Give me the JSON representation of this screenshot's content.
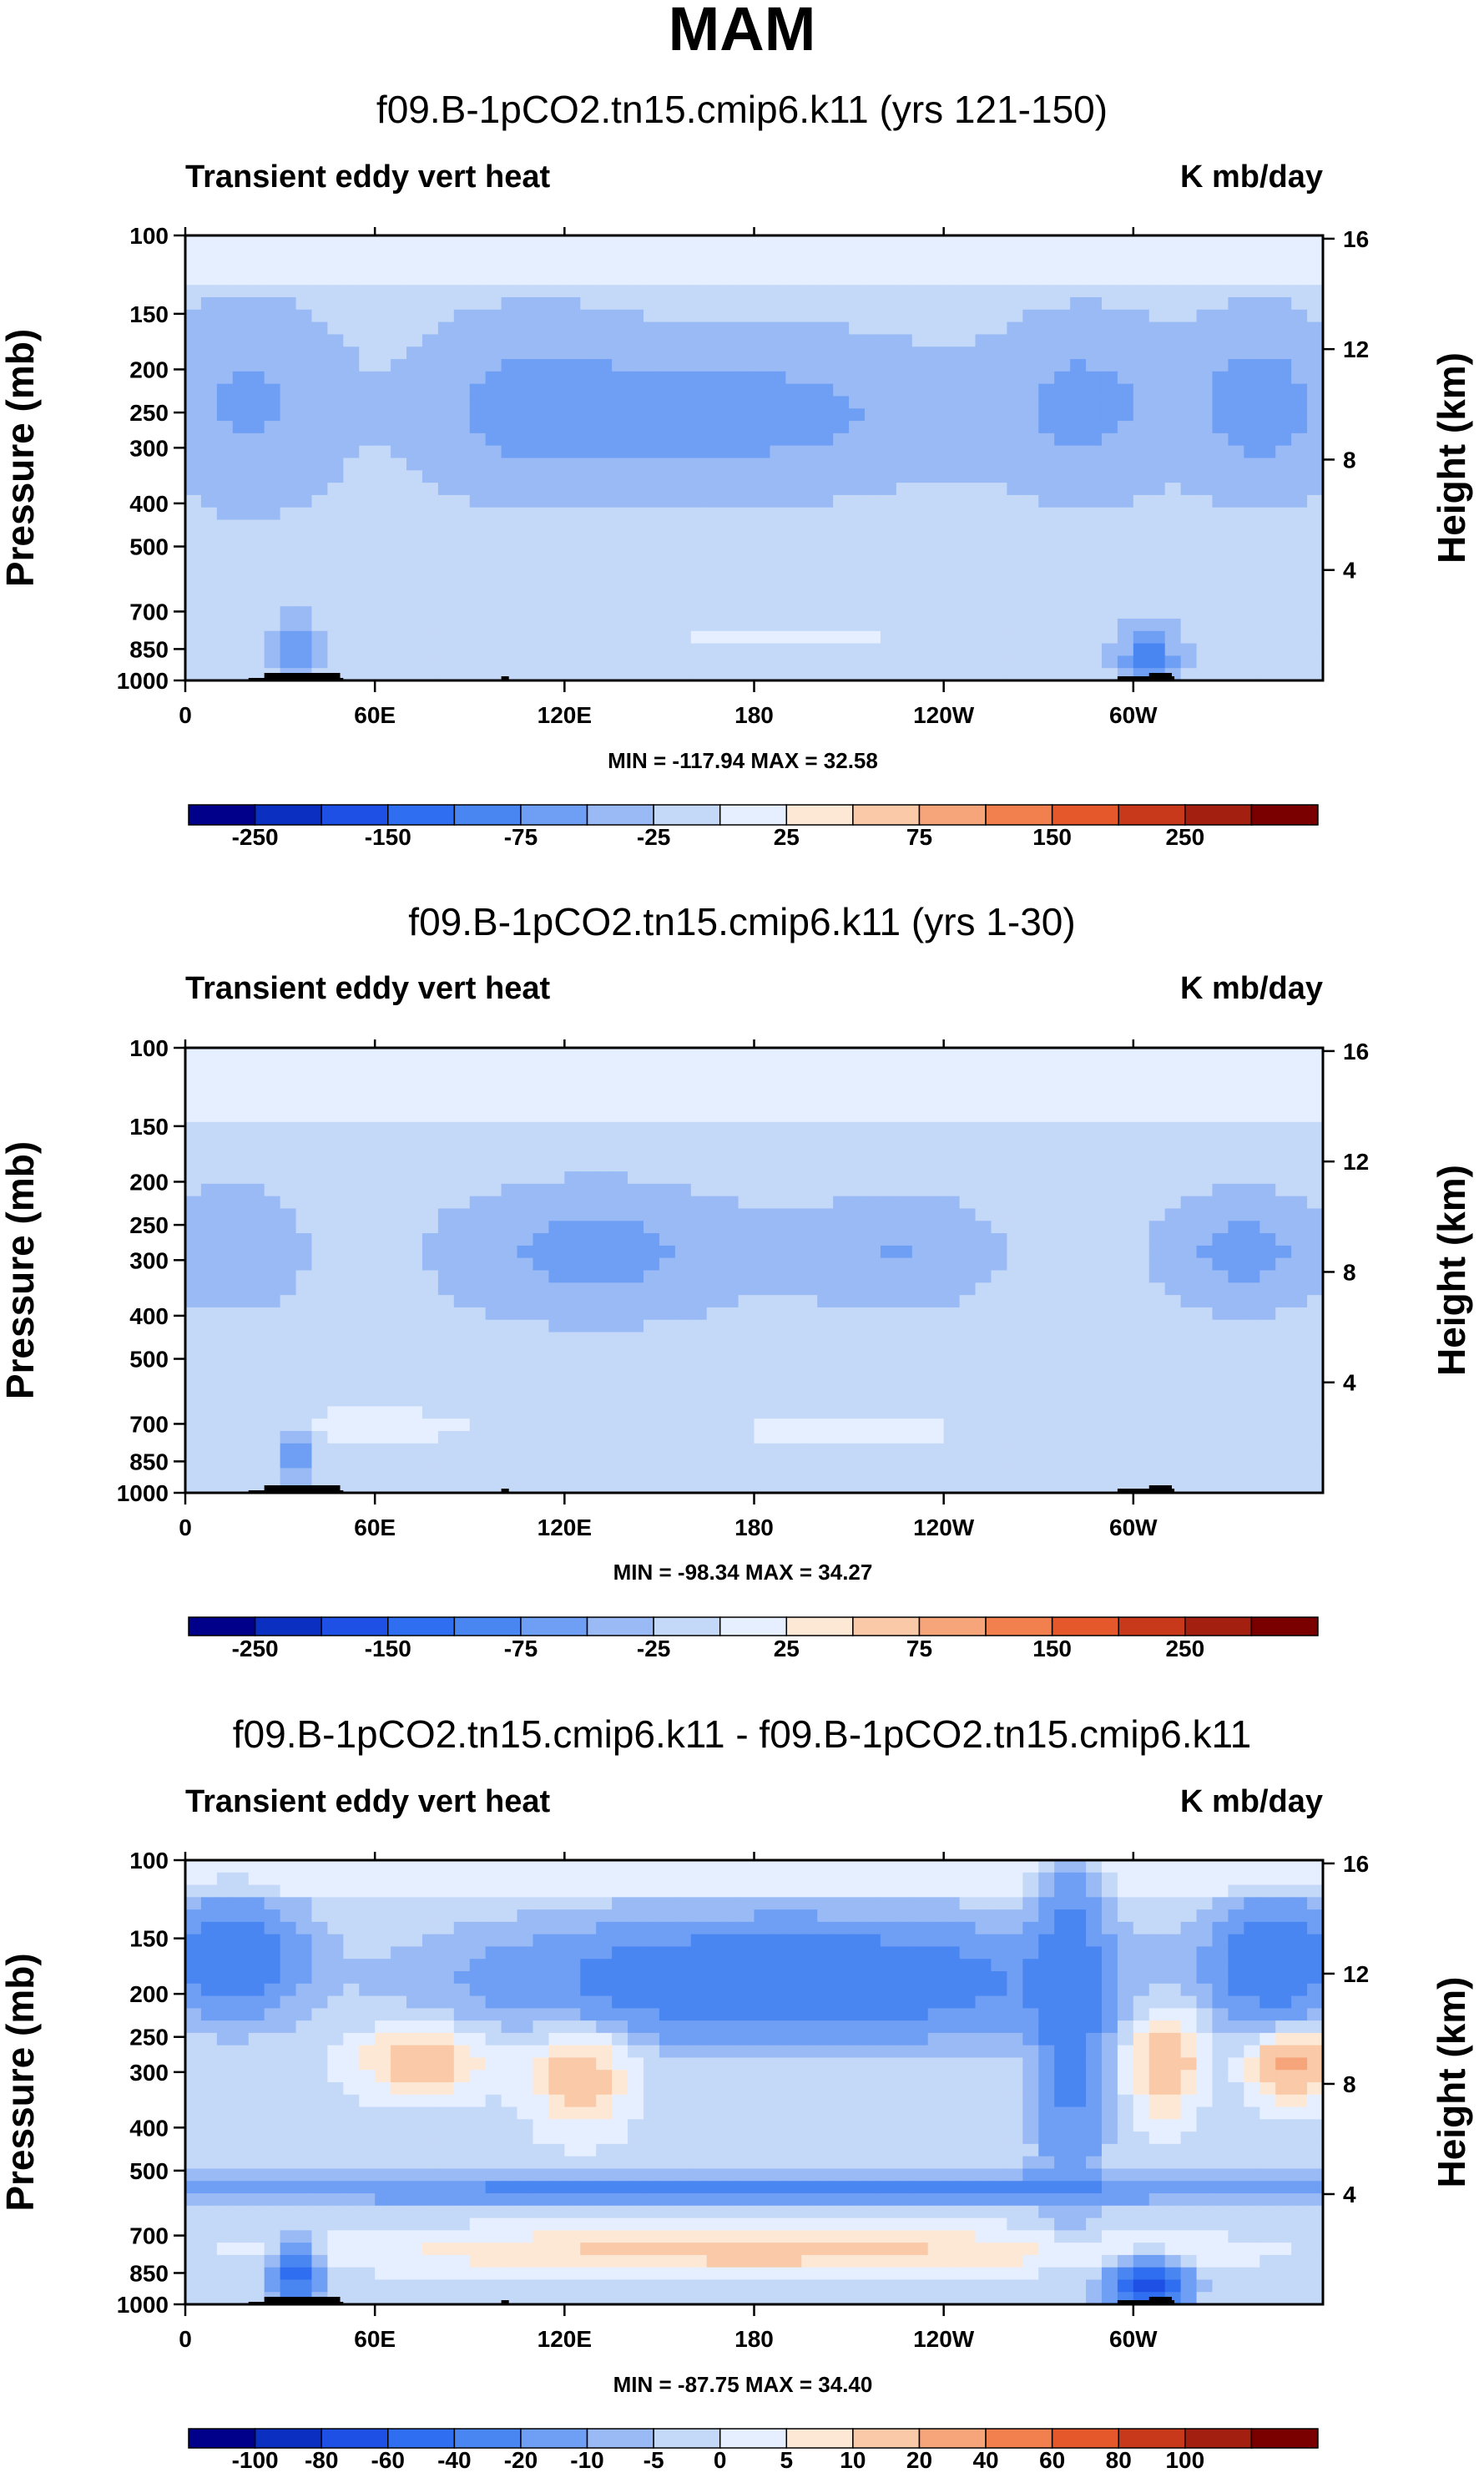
{
  "title": "MAM",
  "chart_data": [
    {
      "type": "heatmap",
      "subtitle": "f09.B-1pCO2.tn15.cmip6.k11 (yrs 121-150)",
      "left_label": "Transient eddy vert heat",
      "right_label": "K mb/day",
      "ylabel": "Pressure (mb)",
      "ylabel_right": "Height (km)",
      "x_ticks": [
        "0",
        "60E",
        "120E",
        "180",
        "120W",
        "60W"
      ],
      "x_tick_values": [
        0,
        60,
        120,
        180,
        240,
        300
      ],
      "xlim": [
        0,
        360
      ],
      "y_ticks": [
        "100",
        "150",
        "200",
        "250",
        "300",
        "400",
        "500",
        "700",
        "850",
        "1000"
      ],
      "y_tick_values": [
        100,
        150,
        200,
        250,
        300,
        400,
        500,
        700,
        850,
        1000
      ],
      "ylim": [
        1000,
        100
      ],
      "y2_ticks": [
        "16",
        "12",
        "8",
        "4"
      ],
      "y2_tick_values": [
        16,
        12,
        8,
        4
      ],
      "stats": "MIN = -117.94   MAX =  32.58",
      "min": -117.94,
      "max": 32.58,
      "colorbar_labels": [
        "-250",
        "-150",
        "-75",
        "-25",
        "25",
        "75",
        "150",
        "250"
      ],
      "colorbar_levels": [
        -300,
        -250,
        -200,
        -150,
        -100,
        -75,
        -50,
        -25,
        0,
        25,
        50,
        75,
        100,
        150,
        200,
        250,
        300
      ]
    },
    {
      "type": "heatmap",
      "subtitle": "f09.B-1pCO2.tn15.cmip6.k11 (yrs 1-30)",
      "left_label": "Transient eddy vert heat",
      "right_label": "K mb/day",
      "ylabel": "Pressure (mb)",
      "ylabel_right": "Height (km)",
      "x_ticks": [
        "0",
        "60E",
        "120E",
        "180",
        "120W",
        "60W"
      ],
      "x_tick_values": [
        0,
        60,
        120,
        180,
        240,
        300
      ],
      "xlim": [
        0,
        360
      ],
      "y_ticks": [
        "100",
        "150",
        "200",
        "250",
        "300",
        "400",
        "500",
        "700",
        "850",
        "1000"
      ],
      "y_tick_values": [
        100,
        150,
        200,
        250,
        300,
        400,
        500,
        700,
        850,
        1000
      ],
      "ylim": [
        1000,
        100
      ],
      "y2_ticks": [
        "16",
        "12",
        "8",
        "4"
      ],
      "y2_tick_values": [
        16,
        12,
        8,
        4
      ],
      "stats": "MIN = -98.34   MAX =  34.27",
      "min": -98.34,
      "max": 34.27,
      "colorbar_labels": [
        "-250",
        "-150",
        "-75",
        "-25",
        "25",
        "75",
        "150",
        "250"
      ],
      "colorbar_levels": [
        -300,
        -250,
        -200,
        -150,
        -100,
        -75,
        -50,
        -25,
        0,
        25,
        50,
        75,
        100,
        150,
        200,
        250,
        300
      ]
    },
    {
      "type": "heatmap",
      "subtitle": "f09.B-1pCO2.tn15.cmip6.k11 - f09.B-1pCO2.tn15.cmip6.k11",
      "left_label": "Transient eddy vert heat",
      "right_label": "K mb/day",
      "ylabel": "Pressure (mb)",
      "ylabel_right": "Height (km)",
      "x_ticks": [
        "0",
        "60E",
        "120E",
        "180",
        "120W",
        "60W"
      ],
      "x_tick_values": [
        0,
        60,
        120,
        180,
        240,
        300
      ],
      "xlim": [
        0,
        360
      ],
      "y_ticks": [
        "100",
        "150",
        "200",
        "250",
        "300",
        "400",
        "500",
        "700",
        "850",
        "1000"
      ],
      "y_tick_values": [
        100,
        150,
        200,
        250,
        300,
        400,
        500,
        700,
        850,
        1000
      ],
      "ylim": [
        1000,
        100
      ],
      "y2_ticks": [
        "16",
        "12",
        "8",
        "4"
      ],
      "y2_tick_values": [
        16,
        12,
        8,
        4
      ],
      "stats": "MIN = -87.75   MAX =  34.40",
      "min": -87.75,
      "max": 34.4,
      "colorbar_labels": [
        "-100",
        "-80",
        "-60",
        "-40",
        "-20",
        "-10",
        "-5",
        "0",
        "5",
        "10",
        "20",
        "40",
        "60",
        "80",
        "100"
      ],
      "colorbar_levels": [
        -120,
        -100,
        -80,
        -60,
        -40,
        -20,
        -10,
        -5,
        0,
        5,
        10,
        20,
        40,
        60,
        80,
        100,
        120
      ]
    }
  ],
  "colorbar_colors": [
    "#00008b",
    "#0a2fc1",
    "#1e50e6",
    "#2f6ef0",
    "#4a86f2",
    "#6f9ff4",
    "#99baf5",
    "#c4d8f7",
    "#e6efff",
    "#fde8d6",
    "#f9c9a8",
    "#f6a57a",
    "#f2804f",
    "#e4582c",
    "#c8381a",
    "#a31f0f",
    "#7a0000"
  ]
}
